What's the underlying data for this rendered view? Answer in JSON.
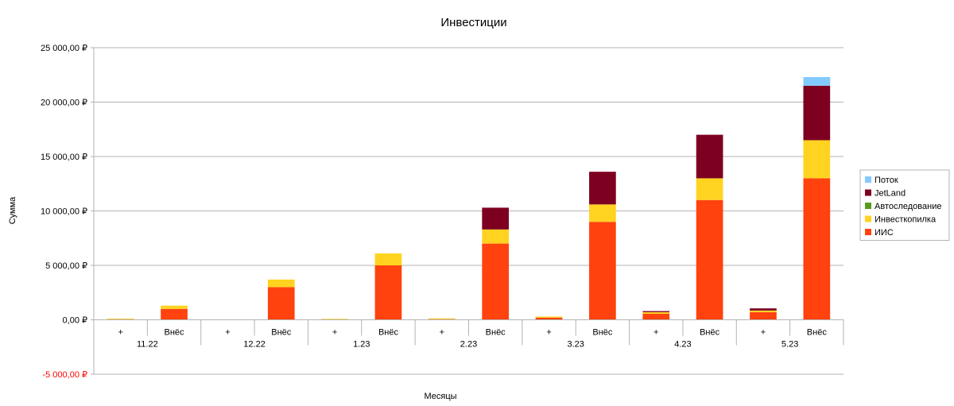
{
  "chart_data": {
    "type": "bar",
    "stacked": true,
    "title": "Инвестиции",
    "xlabel": "Месяцы",
    "ylabel": "Сумма",
    "ylim": [
      -5000,
      25000
    ],
    "y_ticks": [
      -5000,
      0,
      5000,
      10000,
      15000,
      20000,
      25000
    ],
    "y_tick_labels": [
      "-5 000,00 ₽",
      "0,00 ₽",
      "5 000,00 ₽",
      "10 000,00 ₽",
      "15 000,00 ₽",
      "20 000,00 ₽",
      "25 000,00 ₽"
    ],
    "negative_tick_color": "#ff0000",
    "grid": true,
    "legend_position": "right",
    "months": [
      "11.22",
      "12.22",
      "1.23",
      "2.23",
      "3.23",
      "4.23",
      "5.23"
    ],
    "subcategories": [
      "+",
      "Внёс"
    ],
    "series": [
      {
        "name": "ИИС",
        "color": "#ff420e",
        "values": [
          80,
          1000,
          0,
          3000,
          50,
          5000,
          60,
          7000,
          200,
          9000,
          550,
          11000,
          700,
          13000
        ]
      },
      {
        "name": "Инвесткопилка",
        "color": "#ffd320",
        "values": [
          20,
          300,
          20,
          700,
          40,
          1100,
          70,
          1300,
          100,
          1600,
          150,
          2000,
          150,
          3500
        ]
      },
      {
        "name": "Автоследование",
        "color": "#579d1c",
        "values": [
          0,
          0,
          0,
          0,
          0,
          0,
          0,
          0,
          0,
          0,
          0,
          0,
          0,
          0
        ]
      },
      {
        "name": "JetLand",
        "color": "#7e0021",
        "values": [
          0,
          0,
          0,
          0,
          0,
          0,
          0,
          2000,
          0,
          3000,
          100,
          4000,
          200,
          5000
        ]
      },
      {
        "name": "Поток",
        "color": "#83caff",
        "values": [
          0,
          0,
          0,
          0,
          0,
          0,
          0,
          0,
          0,
          0,
          0,
          0,
          0,
          800
        ]
      }
    ]
  }
}
